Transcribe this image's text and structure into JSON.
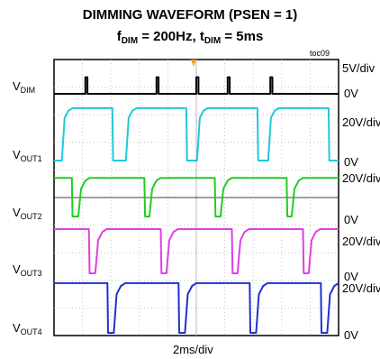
{
  "chart_data": {
    "type": "line",
    "title": "DIMMING WAVEFORM (PSEN = 1)",
    "subtitle": {
      "f": "f",
      "f_sub": "DIM",
      "f_val": " = 200Hz, ",
      "t": "t",
      "t_sub": "DIM",
      "t_val": " = 5ms"
    },
    "figure_tag": "toc09",
    "xlabel": "2ms/div",
    "x_unit": "ms",
    "xlim": [
      0,
      20
    ],
    "grid": true,
    "trigger_color": "#f0a020",
    "series": [
      {
        "name_main": "V",
        "name_sub": "DIM",
        "scale": "5V/div",
        "zero_label": "0V",
        "color": "#000000",
        "points": [
          [
            0,
            0
          ],
          [
            2.2,
            0
          ],
          [
            2.2,
            0.6
          ],
          [
            2.35,
            0.6
          ],
          [
            2.35,
            0
          ],
          [
            7.2,
            0
          ],
          [
            7.2,
            0.6
          ],
          [
            7.35,
            0.6
          ],
          [
            7.35,
            0
          ],
          [
            10,
            0
          ],
          [
            10,
            0.6
          ],
          [
            10.15,
            0.6
          ],
          [
            10.15,
            0
          ],
          [
            12.2,
            0
          ],
          [
            12.2,
            0.6
          ],
          [
            12.35,
            0.6
          ],
          [
            12.35,
            0
          ],
          [
            15.2,
            0
          ],
          [
            15.2,
            0.6
          ],
          [
            15.35,
            0.6
          ],
          [
            15.35,
            0
          ],
          [
            20,
            0
          ]
        ]
      },
      {
        "name_main": "V",
        "name_sub": "OUT1",
        "scale": "20V/div",
        "zero_label": "0V",
        "color": "#20c8d8",
        "points": [
          [
            0,
            0
          ],
          [
            0.55,
            0
          ],
          [
            0.75,
            1.55
          ],
          [
            1.0,
            1.8
          ],
          [
            1.3,
            1.9
          ],
          [
            4.1,
            1.9
          ],
          [
            4.15,
            0
          ],
          [
            5.05,
            0
          ],
          [
            5.25,
            1.55
          ],
          [
            5.5,
            1.8
          ],
          [
            5.8,
            1.9
          ],
          [
            9.3,
            1.9
          ],
          [
            9.35,
            0
          ],
          [
            10.05,
            0
          ],
          [
            10.25,
            1.55
          ],
          [
            10.5,
            1.8
          ],
          [
            10.8,
            1.9
          ],
          [
            14.3,
            1.9
          ],
          [
            14.35,
            0
          ],
          [
            15.05,
            0
          ],
          [
            15.25,
            1.55
          ],
          [
            15.5,
            1.8
          ],
          [
            15.8,
            1.9
          ],
          [
            19.3,
            1.9
          ],
          [
            19.35,
            0
          ],
          [
            20,
            0
          ]
        ]
      },
      {
        "name_main": "V",
        "name_sub": "OUT2",
        "scale": "20V/div",
        "zero_label": "0V",
        "color": "#22cc22",
        "points": [
          [
            0,
            1.4
          ],
          [
            1.25,
            1.4
          ],
          [
            1.3,
            0
          ],
          [
            1.7,
            0
          ],
          [
            1.9,
            1.0
          ],
          [
            2.2,
            1.3
          ],
          [
            2.5,
            1.4
          ],
          [
            6.35,
            1.4
          ],
          [
            6.4,
            0
          ],
          [
            6.7,
            0
          ],
          [
            6.9,
            1.0
          ],
          [
            7.2,
            1.3
          ],
          [
            7.5,
            1.4
          ],
          [
            11.3,
            1.4
          ],
          [
            11.35,
            0
          ],
          [
            11.7,
            0
          ],
          [
            11.9,
            1.0
          ],
          [
            12.2,
            1.3
          ],
          [
            12.5,
            1.4
          ],
          [
            16.35,
            1.4
          ],
          [
            16.4,
            0
          ],
          [
            16.7,
            0
          ],
          [
            16.9,
            1.0
          ],
          [
            17.2,
            1.3
          ],
          [
            17.5,
            1.4
          ],
          [
            20,
            1.4
          ]
        ]
      },
      {
        "name_main": "V",
        "name_sub": "OUT3",
        "scale": "20V/div",
        "zero_label": "0V",
        "color": "#e040e0",
        "points": [
          [
            0,
            1.6
          ],
          [
            2.45,
            1.6
          ],
          [
            2.5,
            0
          ],
          [
            2.9,
            0
          ],
          [
            3.1,
            1.2
          ],
          [
            3.4,
            1.5
          ],
          [
            3.7,
            1.6
          ],
          [
            7.5,
            1.6
          ],
          [
            7.55,
            0
          ],
          [
            7.9,
            0
          ],
          [
            8.1,
            1.2
          ],
          [
            8.4,
            1.5
          ],
          [
            8.7,
            1.6
          ],
          [
            12.5,
            1.6
          ],
          [
            12.55,
            0
          ],
          [
            12.9,
            0
          ],
          [
            13.1,
            1.2
          ],
          [
            13.4,
            1.5
          ],
          [
            13.7,
            1.6
          ],
          [
            17.5,
            1.6
          ],
          [
            17.55,
            0
          ],
          [
            17.9,
            0
          ],
          [
            18.1,
            1.2
          ],
          [
            18.4,
            1.5
          ],
          [
            18.7,
            1.6
          ],
          [
            20,
            1.6
          ]
        ]
      },
      {
        "name_main": "V",
        "name_sub": "OUT4",
        "scale": "20V/div",
        "zero_label": "0V",
        "color": "#2030d0",
        "points": [
          [
            0,
            1.8
          ],
          [
            3.75,
            1.8
          ],
          [
            3.8,
            0
          ],
          [
            4.2,
            0
          ],
          [
            4.4,
            1.4
          ],
          [
            4.7,
            1.7
          ],
          [
            5.0,
            1.8
          ],
          [
            8.75,
            1.8
          ],
          [
            8.8,
            0
          ],
          [
            9.2,
            0
          ],
          [
            9.4,
            1.4
          ],
          [
            9.7,
            1.7
          ],
          [
            10.0,
            1.8
          ],
          [
            13.75,
            1.8
          ],
          [
            13.8,
            0
          ],
          [
            14.2,
            0
          ],
          [
            14.4,
            1.4
          ],
          [
            14.7,
            1.7
          ],
          [
            15.0,
            1.8
          ],
          [
            18.75,
            1.8
          ],
          [
            18.8,
            0
          ],
          [
            19.2,
            0
          ],
          [
            19.4,
            1.4
          ],
          [
            19.7,
            1.7
          ],
          [
            20,
            1.8
          ]
        ]
      }
    ]
  }
}
